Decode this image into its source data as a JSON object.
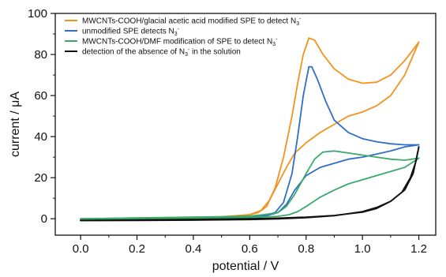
{
  "chart_data": {
    "type": "line",
    "title": "",
    "xlabel": "potential / V",
    "ylabel": "current / μA",
    "xlim": [
      -0.09,
      1.26
    ],
    "ylim": [
      -8,
      100
    ],
    "xticks": [
      "0.0",
      "0.2",
      "0.4",
      "0.6",
      "0.8",
      "1.0",
      "1.2"
    ],
    "yticks": [
      "0",
      "20",
      "40",
      "60",
      "80",
      "100"
    ],
    "grid": false,
    "legend_position": "top-left",
    "series": [
      {
        "name": "MWCNTs-COOH/glacial acetic acid modified SPE to detect N3-",
        "legend_main": "MWCNTs-COOH/glacial acetic acid modified SPE to detect N",
        "legend_sub": "3",
        "legend_sup": "-",
        "legend_tail": "",
        "color": "#f5921e",
        "forward": [
          [
            0.0,
            0.0
          ],
          [
            0.1,
            0.2
          ],
          [
            0.2,
            0.4
          ],
          [
            0.3,
            0.6
          ],
          [
            0.4,
            0.8
          ],
          [
            0.5,
            1.0
          ],
          [
            0.55,
            1.3
          ],
          [
            0.6,
            2.0
          ],
          [
            0.63,
            3.0
          ],
          [
            0.66,
            6.0
          ],
          [
            0.69,
            15.0
          ],
          [
            0.72,
            30.0
          ],
          [
            0.75,
            50.0
          ],
          [
            0.77,
            66.0
          ],
          [
            0.79,
            80.0
          ],
          [
            0.81,
            88.0
          ],
          [
            0.83,
            87.0
          ],
          [
            0.86,
            80.0
          ],
          [
            0.9,
            73.0
          ],
          [
            0.95,
            68.0
          ],
          [
            1.0,
            66.0
          ],
          [
            1.05,
            66.5
          ],
          [
            1.1,
            70.0
          ],
          [
            1.15,
            77.0
          ],
          [
            1.2,
            86.0
          ]
        ],
        "reverse": [
          [
            1.2,
            86.0
          ],
          [
            1.15,
            70.0
          ],
          [
            1.1,
            60.0
          ],
          [
            1.05,
            55.0
          ],
          [
            1.0,
            52.0
          ],
          [
            0.95,
            50.0
          ],
          [
            0.9,
            46.0
          ],
          [
            0.85,
            42.0
          ],
          [
            0.8,
            37.0
          ],
          [
            0.76,
            32.0
          ],
          [
            0.73,
            25.0
          ],
          [
            0.7,
            17.0
          ],
          [
            0.67,
            9.0
          ],
          [
            0.64,
            4.0
          ],
          [
            0.6,
            2.0
          ],
          [
            0.5,
            1.0
          ],
          [
            0.4,
            0.6
          ],
          [
            0.3,
            0.4
          ],
          [
            0.2,
            0.2
          ],
          [
            0.1,
            0.0
          ],
          [
            0.0,
            -0.2
          ]
        ]
      },
      {
        "name": "unmodified SPE detects N3-",
        "legend_main": "unmodified SPE detects N",
        "legend_sub": "3",
        "legend_sup": "-",
        "legend_tail": "",
        "color": "#2f6fc6",
        "forward": [
          [
            0.0,
            -0.5
          ],
          [
            0.1,
            -0.3
          ],
          [
            0.2,
            0.0
          ],
          [
            0.3,
            0.2
          ],
          [
            0.4,
            0.5
          ],
          [
            0.5,
            0.7
          ],
          [
            0.6,
            1.0
          ],
          [
            0.65,
            1.5
          ],
          [
            0.69,
            3.0
          ],
          [
            0.72,
            8.0
          ],
          [
            0.75,
            22.0
          ],
          [
            0.77,
            40.0
          ],
          [
            0.79,
            60.0
          ],
          [
            0.81,
            74.0
          ],
          [
            0.82,
            74.0
          ],
          [
            0.84,
            68.0
          ],
          [
            0.87,
            57.0
          ],
          [
            0.9,
            48.0
          ],
          [
            0.95,
            42.0
          ],
          [
            1.0,
            39.0
          ],
          [
            1.05,
            37.5
          ],
          [
            1.1,
            36.5
          ],
          [
            1.15,
            36.0
          ],
          [
            1.2,
            36.0
          ]
        ],
        "reverse": [
          [
            1.2,
            36.0
          ],
          [
            1.15,
            35.0
          ],
          [
            1.1,
            33.0
          ],
          [
            1.05,
            31.5
          ],
          [
            1.0,
            30.0
          ],
          [
            0.95,
            29.0
          ],
          [
            0.9,
            27.0
          ],
          [
            0.85,
            25.0
          ],
          [
            0.8,
            21.0
          ],
          [
            0.76,
            14.0
          ],
          [
            0.73,
            7.0
          ],
          [
            0.7,
            3.0
          ],
          [
            0.65,
            1.2
          ],
          [
            0.6,
            0.6
          ],
          [
            0.5,
            0.3
          ],
          [
            0.4,
            0.0
          ],
          [
            0.3,
            -0.2
          ],
          [
            0.2,
            -0.4
          ],
          [
            0.1,
            -0.5
          ],
          [
            0.0,
            -0.6
          ]
        ]
      },
      {
        "name": "MWCNTs-COOH/DMF modification of SPE to detect N3-",
        "legend_main": "MWCNTs-COOH/DMF modification of SPE to detect N",
        "legend_sub": "3",
        "legend_sup": "-",
        "legend_tail": "",
        "color": "#3aaa6a",
        "forward": [
          [
            0.0,
            0.0
          ],
          [
            0.1,
            0.2
          ],
          [
            0.2,
            0.4
          ],
          [
            0.3,
            0.6
          ],
          [
            0.4,
            0.8
          ],
          [
            0.5,
            1.0
          ],
          [
            0.6,
            1.3
          ],
          [
            0.65,
            2.0
          ],
          [
            0.7,
            3.0
          ],
          [
            0.73,
            6.0
          ],
          [
            0.76,
            12.0
          ],
          [
            0.8,
            22.0
          ],
          [
            0.83,
            29.0
          ],
          [
            0.86,
            32.5
          ],
          [
            0.9,
            33.0
          ],
          [
            0.95,
            32.0
          ],
          [
            1.0,
            31.0
          ],
          [
            1.05,
            30.0
          ],
          [
            1.1,
            29.0
          ],
          [
            1.15,
            28.5
          ],
          [
            1.2,
            29.5
          ]
        ],
        "reverse": [
          [
            1.2,
            29.5
          ],
          [
            1.15,
            25.0
          ],
          [
            1.1,
            23.0
          ],
          [
            1.05,
            21.0
          ],
          [
            1.0,
            19.0
          ],
          [
            0.95,
            17.0
          ],
          [
            0.9,
            14.0
          ],
          [
            0.85,
            10.5
          ],
          [
            0.8,
            6.0
          ],
          [
            0.77,
            3.5
          ],
          [
            0.74,
            2.0
          ],
          [
            0.7,
            1.2
          ],
          [
            0.6,
            0.6
          ],
          [
            0.5,
            0.3
          ],
          [
            0.4,
            0.1
          ],
          [
            0.2,
            -0.1
          ],
          [
            0.0,
            -0.2
          ]
        ]
      },
      {
        "name": "detection of the absence of N3- in the solution",
        "legend_main": "detection of the absence of N",
        "legend_sub": "3",
        "legend_sup": "-",
        "legend_tail": " in the solution",
        "color": "#111111",
        "forward": [
          [
            0.0,
            -0.8
          ],
          [
            0.2,
            -0.6
          ],
          [
            0.4,
            -0.3
          ],
          [
            0.6,
            0.0
          ],
          [
            0.7,
            0.3
          ],
          [
            0.8,
            0.8
          ],
          [
            0.9,
            1.6
          ],
          [
            1.0,
            3.2
          ],
          [
            1.05,
            5.0
          ],
          [
            1.1,
            8.5
          ],
          [
            1.14,
            13.0
          ],
          [
            1.17,
            20.0
          ],
          [
            1.19,
            28.0
          ],
          [
            1.2,
            35.0
          ]
        ],
        "reverse": [
          [
            1.2,
            35.0
          ],
          [
            1.18,
            22.0
          ],
          [
            1.15,
            14.0
          ],
          [
            1.1,
            8.5
          ],
          [
            1.05,
            5.5
          ],
          [
            1.0,
            3.5
          ],
          [
            0.9,
            1.5
          ],
          [
            0.8,
            0.5
          ],
          [
            0.7,
            -0.1
          ],
          [
            0.6,
            -0.4
          ],
          [
            0.4,
            -0.7
          ],
          [
            0.2,
            -0.8
          ],
          [
            0.0,
            -0.9
          ]
        ]
      }
    ]
  }
}
